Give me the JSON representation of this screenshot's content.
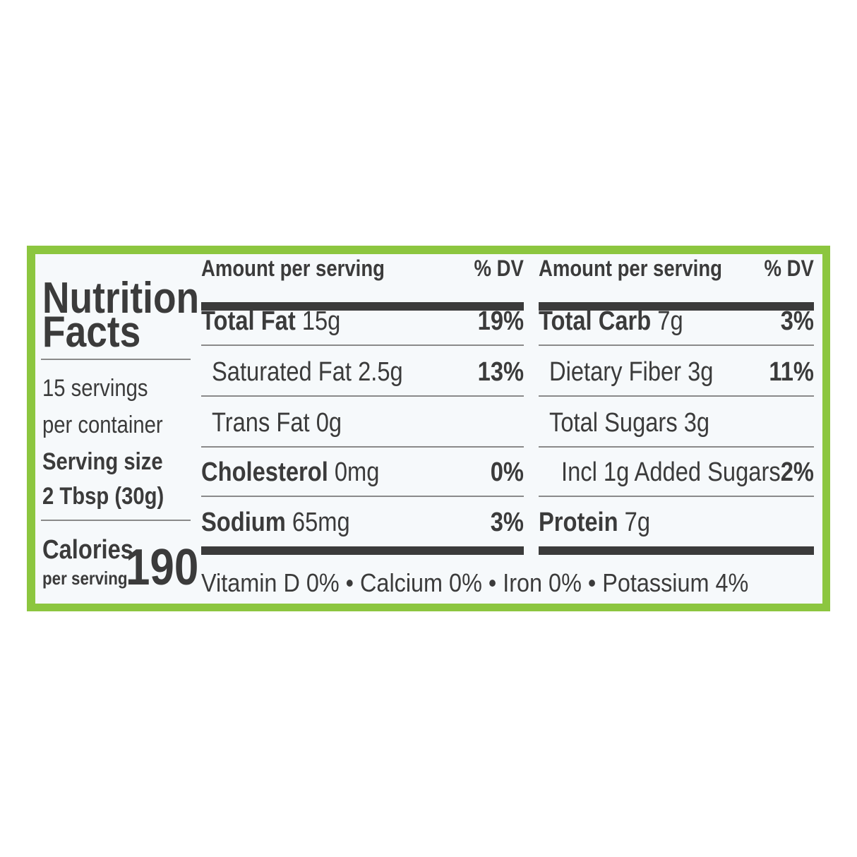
{
  "colors": {
    "border": "#8cc63f",
    "text": "#3b3b3b",
    "panel": "#f6f9fb"
  },
  "title": [
    "Nutrition",
    "Facts"
  ],
  "servings": [
    "15 servings",
    "per container"
  ],
  "serving_size": {
    "label": "Serving size",
    "value": "2 Tbsp (30g)"
  },
  "calories": {
    "label": "Calories",
    "sub": "per serving",
    "value": "190"
  },
  "left_table": {
    "header": {
      "amount": "Amount per serving",
      "dv": "% DV"
    },
    "rows": [
      {
        "name": "Total Fat",
        "amount": "15g",
        "dv": "19%",
        "bold": true
      },
      {
        "name": "Saturated Fat",
        "amount": "2.5g",
        "dv": "13%",
        "bold": false
      },
      {
        "name": "Trans Fat",
        "amount": "0g",
        "dv": "",
        "bold": false
      },
      {
        "name": "Cholesterol",
        "amount": "0mg",
        "dv": "0%",
        "bold": true
      },
      {
        "name": "Sodium",
        "amount": "65mg",
        "dv": "3%",
        "bold": true
      }
    ]
  },
  "right_table": {
    "header": {
      "amount": "Amount per serving",
      "dv": "% DV"
    },
    "rows": [
      {
        "name": "Total Carb",
        "amount": "7g",
        "dv": "3%",
        "bold": true
      },
      {
        "name": "Dietary Fiber",
        "amount": "3g",
        "dv": "11%",
        "bold": false
      },
      {
        "name": "Total Sugars",
        "amount": "3g",
        "dv": "",
        "bold": false
      },
      {
        "name": "Incl 1g Added Sugars",
        "amount": "",
        "dv": "2%",
        "bold": false
      },
      {
        "name": "Protein",
        "amount": "7g",
        "dv": "",
        "bold": true
      }
    ]
  },
  "footer": "Vitamin D 0%  •  Calcium 0%  •  Iron 0%  •  Potassium 4%"
}
